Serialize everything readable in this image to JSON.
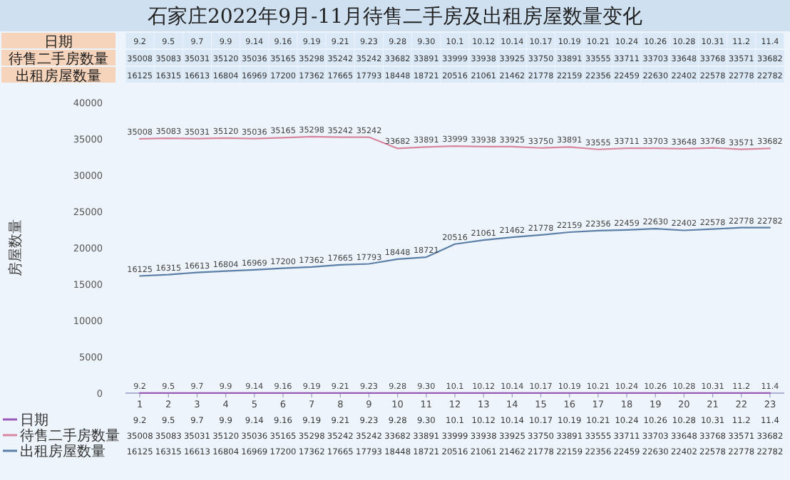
{
  "chart_data": {
    "type": "line",
    "title": "石家庄2022年9月-11月待售二手房及出租房屋数量变化",
    "ylabel": "房屋数量",
    "x": [
      1,
      2,
      3,
      4,
      5,
      6,
      7,
      8,
      9,
      10,
      11,
      12,
      13,
      14,
      15,
      16,
      17,
      18,
      19,
      20,
      21,
      22,
      23
    ],
    "xlim": [
      0.5,
      23.5
    ],
    "xticks": [
      1,
      2,
      3,
      4,
      5,
      6,
      7,
      8,
      9,
      10,
      11,
      12,
      13,
      14,
      15,
      16,
      17,
      18,
      19,
      20,
      21,
      22,
      23
    ],
    "ylim": [
      0,
      40000
    ],
    "yticks": [
      0,
      5000,
      10000,
      15000,
      20000,
      25000,
      30000,
      35000,
      40000
    ],
    "legend": "bottom left",
    "series": [
      {
        "name": "日期",
        "color": "#9b59b6",
        "values": [
          9.2,
          9.5,
          9.7,
          9.9,
          9.14,
          9.16,
          9.19,
          9.21,
          9.23,
          9.28,
          9.3,
          10.1,
          10.12,
          10.14,
          10.17,
          10.19,
          10.21,
          10.24,
          10.26,
          10.28,
          10.31,
          11.2,
          11.4
        ],
        "value_labels": [
          "9.2",
          "9.5",
          "9.7",
          "9.9",
          "9.14",
          "9.16",
          "9.19",
          "9.21",
          "9.23",
          "9.28",
          "9.30",
          "10.1",
          "10.12",
          "10.14",
          "10.17",
          "10.19",
          "10.21",
          "10.24",
          "10.26",
          "10.28",
          "10.31",
          "11.2",
          "11.4"
        ]
      },
      {
        "name": "待售二手房数量",
        "color": "#d9879e",
        "values": [
          35008,
          35083,
          35031,
          35120,
          35036,
          35165,
          35298,
          35242,
          35242,
          33682,
          33891,
          33999,
          33938,
          33925,
          33750,
          33891,
          33555,
          33711,
          33703,
          33648,
          33768,
          33571,
          33682
        ],
        "value_labels": [
          "35008",
          "35083",
          "35031",
          "35120",
          "35036",
          "35165",
          "35298",
          "35242",
          "35242",
          "33682",
          "33891",
          "33999",
          "33938",
          "33925",
          "33750",
          "33891",
          "33555",
          "33711",
          "33703",
          "33648",
          "33768",
          "33571",
          "33682"
        ]
      },
      {
        "name": "出租房屋数量",
        "color": "#5b7fa6",
        "values": [
          16125,
          16315,
          16613,
          16804,
          16969,
          17200,
          17362,
          17665,
          17793,
          18448,
          18721,
          20516,
          21061,
          21462,
          21778,
          22159,
          22356,
          22459,
          22630,
          22402,
          22578,
          22778,
          22782
        ],
        "value_labels": [
          "16125",
          "16315",
          "16613",
          "16804",
          "16969",
          "17200",
          "17362",
          "17665",
          "17793",
          "18448",
          "18721",
          "20516",
          "21061",
          "21462",
          "21778",
          "22159",
          "22356",
          "22459",
          "22630",
          "22402",
          "22578",
          "22778",
          "22782"
        ]
      }
    ]
  }
}
